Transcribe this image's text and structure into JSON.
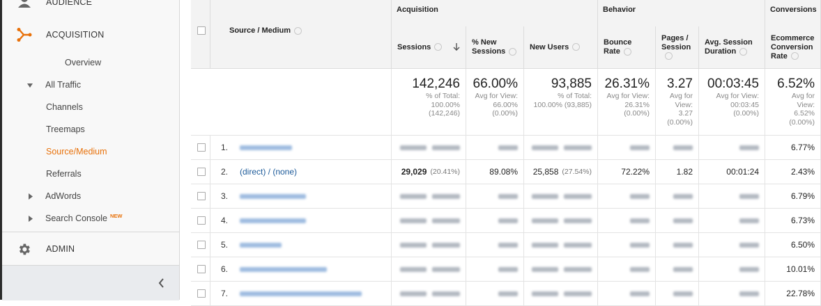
{
  "sidebar": {
    "audience": "AUDIENCE",
    "acquisition": "ACQUISITION",
    "items": [
      "Overview",
      "All Traffic",
      "Channels",
      "Treemaps",
      "Source/Medium",
      "Referrals",
      "AdWords",
      "Search Console"
    ],
    "new_badge": "NEW",
    "admin": "ADMIN"
  },
  "table": {
    "groups": [
      "Acquisition",
      "Behavior",
      "Conversions"
    ],
    "columns": [
      "Source / Medium",
      "Sessions",
      "% New Sessions",
      "New Users",
      "Bounce Rate",
      "Pages / Session",
      "Avg. Session Duration",
      "Ecommerce Conversion Rate"
    ],
    "totals": [
      {
        "value": "142,246",
        "note": [
          "% of Total:",
          "100.00%",
          "(142,246)"
        ]
      },
      {
        "value": "66.00%",
        "note": [
          "Avg for View:",
          "66.00%",
          "(0.00%)"
        ]
      },
      {
        "value": "93,885",
        "note": [
          "% of Total:",
          "100.00% (93,885)"
        ]
      },
      {
        "value": "26.31%",
        "note": [
          "Avg for View:",
          "26.31%",
          "(0.00%)"
        ]
      },
      {
        "value": "3.27",
        "note": [
          "Avg for",
          "View:",
          "3.27",
          "(0.00%)"
        ]
      },
      {
        "value": "00:03:45",
        "note": [
          "Avg for View:",
          "00:03:45",
          "(0.00%)"
        ]
      },
      {
        "value": "6.52%",
        "note": [
          "Avg for",
          "View:",
          "6.52%",
          "(0.00%)"
        ]
      }
    ],
    "rows": [
      {
        "num": "1.",
        "cells": [
          null,
          null,
          null,
          null,
          null,
          null,
          null,
          null,
          null,
          "6.77%"
        ]
      },
      {
        "num": "2.",
        "cells": [
          "(direct) / (none)",
          "29,029",
          "(20.41%)",
          "89.08%",
          "25,858",
          "(27.54%)",
          "72.22%",
          "1.82",
          "00:01:24",
          "2.43%"
        ]
      },
      {
        "num": "3.",
        "cells": [
          null,
          null,
          null,
          null,
          null,
          null,
          null,
          null,
          null,
          "6.79%"
        ]
      },
      {
        "num": "4.",
        "cells": [
          null,
          null,
          null,
          null,
          null,
          null,
          null,
          null,
          null,
          "6.73%"
        ]
      },
      {
        "num": "5.",
        "cells": [
          null,
          null,
          null,
          null,
          null,
          null,
          null,
          null,
          null,
          "6.50%"
        ]
      },
      {
        "num": "6.",
        "cells": [
          null,
          null,
          null,
          null,
          null,
          null,
          null,
          null,
          null,
          "10.01%"
        ]
      },
      {
        "num": "7.",
        "cells": [
          null,
          null,
          null,
          null,
          null,
          null,
          null,
          null,
          null,
          "22.78%"
        ]
      }
    ]
  }
}
